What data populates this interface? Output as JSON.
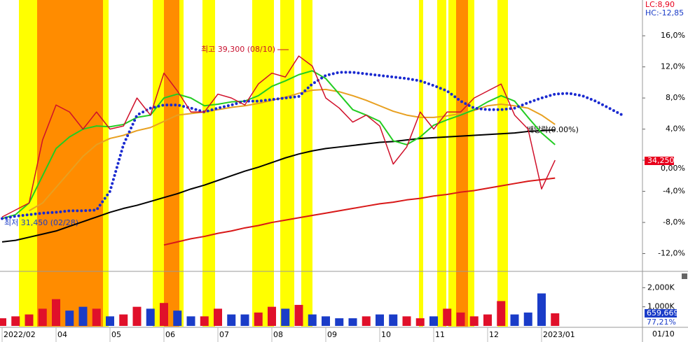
{
  "chart_data": {
    "type": "line",
    "legend_texts": [
      "LC:8,90",
      "HC:-12,85"
    ],
    "legend_colors": [
      "#e8001c",
      "#1a3cc8"
    ],
    "annotations": [
      {
        "text": "최고 39,300 (08/10)",
        "color": "#c8102e"
      },
      {
        "text": "최저 31,450 (02/28)",
        "color": "#1a3cc8"
      },
      {
        "text": "배당락(0.00%)",
        "color": "#000000"
      }
    ],
    "price_tag": "34,250",
    "date_label": "01/10",
    "categories": [
      "2022/02",
      null,
      null,
      null,
      "04",
      null,
      null,
      null,
      "05",
      null,
      null,
      null,
      "06",
      null,
      null,
      null,
      "07",
      null,
      null,
      null,
      "08",
      null,
      null,
      null,
      "09",
      null,
      null,
      null,
      "10",
      null,
      null,
      null,
      "11",
      null,
      null,
      null,
      "12",
      null,
      null,
      null,
      "2023/01",
      null,
      null,
      null,
      null,
      null,
      null
    ],
    "ylim": [
      -14.2,
      20.6
    ],
    "yticks": [
      {
        "value": 16,
        "label": "16,0%"
      },
      {
        "value": 12,
        "label": "12,0%"
      },
      {
        "value": 8,
        "label": "8,0%"
      },
      {
        "value": 4,
        "label": "4,0%"
      },
      {
        "value": 0,
        "label": "0,00%"
      },
      {
        "value": -4,
        "label": "-4,0%"
      },
      {
        "value": -8,
        "label": "-8,0%"
      },
      {
        "value": -12,
        "label": "-12,0%"
      }
    ],
    "grid": false,
    "series": [
      {
        "color": "#d0102a",
        "style": "price",
        "values": [
          -7.3,
          -6.4,
          -5.5,
          2.6,
          7.1,
          6.2,
          4.0,
          6.2,
          4.0,
          4.4,
          8.0,
          5.8,
          11.2,
          8.9,
          6.2,
          6.2,
          8.5,
          8.0,
          7.1,
          9.8,
          11.2,
          10.7,
          13.4,
          12.1,
          8.0,
          6.7,
          4.9,
          5.8,
          4.4,
          -0.5,
          1.7,
          6.2,
          4.0,
          6.2,
          6.2,
          8.0,
          8.9,
          9.8,
          5.8,
          4.0,
          -3.7,
          0,
          null,
          null,
          null,
          null,
          null
        ]
      },
      {
        "color": "#22cc22",
        "style": "solid",
        "values": [
          -7.5,
          -7.0,
          -5.5,
          -2.0,
          1.5,
          3.0,
          4.0,
          4.4,
          4.3,
          4.6,
          5.5,
          5.8,
          8.0,
          8.5,
          8.0,
          7.0,
          7.2,
          7.5,
          7.6,
          8.3,
          9.5,
          10.2,
          11.0,
          11.5,
          10.5,
          8.5,
          6.5,
          5.8,
          5.0,
          2.5,
          2.0,
          3.0,
          4.5,
          5.2,
          5.8,
          6.5,
          7.5,
          8.3,
          7.6,
          5.5,
          3.5,
          2.0,
          null,
          null,
          null,
          null,
          null
        ]
      },
      {
        "color": "#e8a020",
        "style": "solid",
        "values": [
          null,
          null,
          -6.5,
          -5.5,
          -3.5,
          -1.5,
          0.5,
          2.0,
          2.8,
          3.2,
          3.8,
          4.2,
          5.0,
          5.8,
          6.0,
          6.2,
          6.5,
          6.8,
          7.0,
          7.3,
          7.7,
          8.1,
          8.6,
          9.0,
          9.1,
          8.8,
          8.3,
          7.7,
          7.0,
          6.3,
          5.8,
          5.5,
          5.5,
          5.7,
          6.0,
          6.4,
          7.0,
          7.2,
          7.0,
          6.7,
          5.8,
          4.6,
          null,
          null,
          null,
          null,
          null
        ]
      },
      {
        "color": "#1a2ad0",
        "style": "dotted",
        "values": [
          -7.5,
          -7.2,
          -7.0,
          -6.8,
          -6.7,
          -6.5,
          -6.5,
          -6.4,
          -4.0,
          2.0,
          5.8,
          6.7,
          7.1,
          7.1,
          6.7,
          6.2,
          6.7,
          7.1,
          7.6,
          7.6,
          7.8,
          8.0,
          8.2,
          9.8,
          10.9,
          11.3,
          11.3,
          11.1,
          10.9,
          10.7,
          10.5,
          10.2,
          9.6,
          8.9,
          7.6,
          6.7,
          6.5,
          6.5,
          6.7,
          7.4,
          8.0,
          8.5,
          8.6,
          8.3,
          7.6,
          6.7,
          5.8
        ]
      },
      {
        "color": "#000000",
        "style": "solid",
        "values": [
          -10.5,
          -10.3,
          -9.9,
          -9.5,
          -9.1,
          -8.5,
          -7.9,
          -7.3,
          -6.7,
          -6.2,
          -5.8,
          -5.3,
          -4.8,
          -4.3,
          -3.7,
          -3.2,
          -2.6,
          -2.0,
          -1.4,
          -0.9,
          -0.3,
          0.3,
          0.8,
          1.2,
          1.5,
          1.7,
          1.9,
          2.1,
          2.3,
          2.4,
          2.6,
          2.8,
          2.9,
          3.0,
          3.1,
          3.2,
          3.3,
          3.4,
          3.5,
          3.7,
          3.8,
          3.9,
          null,
          null,
          null,
          null,
          null
        ]
      },
      {
        "color": "#d81818",
        "style": "solid",
        "values": [
          null,
          null,
          null,
          null,
          null,
          null,
          null,
          null,
          null,
          null,
          null,
          null,
          -10.9,
          -10.5,
          -10.1,
          -9.8,
          -9.4,
          -9.1,
          -8.7,
          -8.4,
          -8.0,
          -7.7,
          -7.4,
          -7.1,
          -6.8,
          -6.5,
          -6.2,
          -5.9,
          -5.6,
          -5.4,
          -5.1,
          -4.9,
          -4.6,
          -4.4,
          -4.1,
          -3.9,
          -3.6,
          -3.3,
          -3.0,
          -2.7,
          -2.5,
          -2.3,
          null,
          null,
          null,
          null,
          null
        ]
      }
    ],
    "volume": {
      "ylim": [
        0,
        2780000
      ],
      "yticks": [
        {
          "value": 2000000,
          "label": "2,000K"
        },
        {
          "value": 1000000,
          "label": "1,000K"
        }
      ],
      "values": [
        400000,
        500000,
        600000,
        900000,
        1400000,
        800000,
        1000000,
        900000,
        500000,
        600000,
        1000000,
        900000,
        1200000,
        800000,
        500000,
        500000,
        900000,
        600000,
        600000,
        700000,
        1000000,
        900000,
        1100000,
        600000,
        500000,
        400000,
        400000,
        500000,
        600000,
        600000,
        500000,
        400000,
        500000,
        900000,
        700000,
        500000,
        600000,
        1300000,
        600000,
        700000,
        1700000,
        659669,
        null,
        null,
        null,
        null,
        null
      ],
      "last_label": "659,669",
      "ratio_label": "77,21%",
      "up_color": "#e0102a",
      "down_color": "#1a3cc8"
    }
  }
}
